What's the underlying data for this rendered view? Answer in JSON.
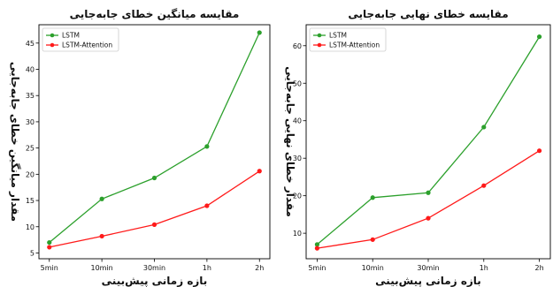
{
  "chart_data": [
    {
      "type": "line",
      "title": "مقایسه میانگین خطای جابه‌جایی",
      "xlabel": "بازه زمانی پیش‌بینی",
      "ylabel": "مقدار میانگین خطای جابه‌جایی",
      "categories": [
        "5min",
        "10min",
        "30min",
        "1h",
        "2h"
      ],
      "ylim": [
        3.9,
        48.5
      ],
      "yticks": [
        5,
        10,
        15,
        20,
        25,
        30,
        35,
        40,
        45
      ],
      "legend": "top-left",
      "grid": false,
      "series": [
        {
          "name": "LSTM",
          "color": "#2ca02c",
          "values": [
            7.0,
            15.3,
            19.3,
            25.3,
            47.0
          ]
        },
        {
          "name": "LSTM-Attention",
          "color": "#ff1a1a",
          "values": [
            6.1,
            8.2,
            10.4,
            14.0,
            20.6
          ]
        }
      ]
    },
    {
      "type": "line",
      "title": "مقایسه خطای نهایی جابه‌جایی",
      "xlabel": "بازه زمانی پیش‌بینی",
      "ylabel": "مقدار خطای نهایی جابه‌جایی",
      "categories": [
        "5min",
        "10min",
        "30min",
        "1h",
        "2h"
      ],
      "ylim": [
        3.2,
        65.6
      ],
      "yticks": [
        10,
        20,
        30,
        40,
        50,
        60
      ],
      "legend": "top-left",
      "grid": false,
      "series": [
        {
          "name": "LSTM",
          "color": "#2ca02c",
          "values": [
            7.0,
            19.5,
            20.8,
            38.3,
            62.4
          ]
        },
        {
          "name": "LSTM-Attention",
          "color": "#ff1a1a",
          "values": [
            6.0,
            8.3,
            14.0,
            22.7,
            32.0
          ]
        }
      ]
    }
  ]
}
